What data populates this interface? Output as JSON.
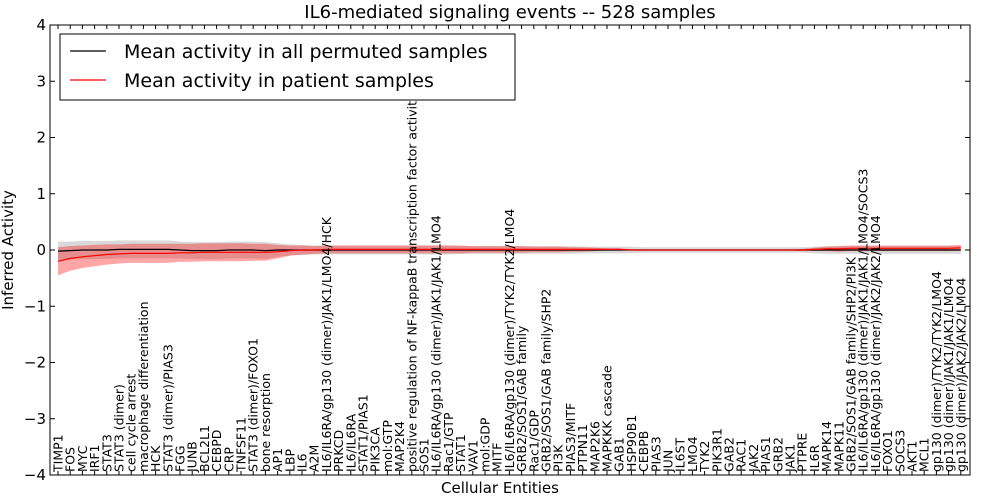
{
  "chart_data": {
    "type": "line",
    "title": "IL6-mediated signaling events -- 528 samples",
    "xlabel": "Cellular Entities",
    "ylabel": "Inferred Activity",
    "ylim": [
      -4,
      4
    ],
    "yticks": [
      "4",
      "3",
      "2",
      "1",
      "0",
      "−1",
      "−2",
      "−3",
      "−4"
    ],
    "grid": false,
    "legend": {
      "position": "top-left",
      "entries": [
        {
          "name": "Mean activity in all permuted samples",
          "color": "#000000"
        },
        {
          "name": "Mean activity in patient samples",
          "color": "#ff0000"
        }
      ]
    },
    "categories": [
      "TIMP1",
      "FOS",
      "MYC",
      "IRF1",
      "STAT3",
      "STAT3 (dimer)",
      "cell cycle arrest",
      "macrophage differentiation",
      "HCK",
      "STAT3 (dimer)/PIAS3",
      "FGG",
      "JUNB",
      "BCL2L1",
      "CEBPD",
      "CRP",
      "TNFSF11",
      "STAT3 (dimer)/FOXO1",
      "bone resorption",
      "AP1",
      "LBP",
      "IL6",
      "A2M",
      "IL6/IL6RA/gp130 (dimer)/JAK1/LMO4/HCK",
      "PRKCD",
      "IL6/IL6RA",
      "STAT1/PIAS1",
      "PIK3CA",
      "mol:GTP",
      "MAP2K4",
      "positive regulation of NF-kappaB transcription factor activity",
      "SOS1",
      "IL6/IL6RA/gp130 (dimer)/JAK1/JAK1/LMO4",
      "Rac1/GTP",
      "STAT1",
      "VAV1",
      "mol:GDP",
      "MITF",
      "IL6/IL6RA/gp130 (dimer)/TYK2/TYK2/LMO4",
      "GRB2/SOS1/GAB family",
      "Rac1/GDP",
      "GRB2/SOS1/GAB family/SHP2",
      "PI3K",
      "PIAS3/MITF",
      "PTPN11",
      "MAP2K6",
      "MAPKKK cascade",
      "GAB1",
      "HSP90B1",
      "CEBPB",
      "PIAS3",
      "JUN",
      "IL6ST",
      "LMO4",
      "TYK2",
      "PIK3R1",
      "GAB2",
      "RAC1",
      "JAK2",
      "PIAS1",
      "GRB2",
      "JAK1",
      "PTPRE",
      "IL6R",
      "MAPK14",
      "MAPK11",
      "GRB2/SOS1/GAB family/SHP2/PI3K",
      "IL6/IL6RA/gp130 (dimer)/JAK1/JAK1/LMO4/SOCS3",
      "IL6/IL6RA/gp130 (dimer)/JAK2/JAK2/LMO4",
      "FOXO1",
      "SOCS3",
      "AKT1",
      "MCL1",
      "gp130 (dimer)/TYK2/TYK2/LMO4",
      "gp130 (dimer)/JAK1/JAK1/LMO4",
      "gp130 (dimer)/JAK2/JAK2/LMO4"
    ],
    "series": [
      {
        "name": "Mean activity in all permuted samples",
        "color": "#000000",
        "values": [
          -0.02,
          -0.01,
          0,
          0,
          0,
          0.01,
          0.01,
          0.01,
          0.01,
          0.01,
          0,
          -0.01,
          -0.01,
          -0.01,
          0,
          0,
          0,
          -0.01,
          0,
          0,
          0,
          0,
          0,
          0,
          0,
          0,
          0,
          0,
          0,
          0,
          0,
          0,
          0,
          0,
          0,
          0,
          0,
          0,
          0,
          0,
          0,
          0,
          0,
          0,
          0,
          0,
          0,
          0,
          0,
          0,
          0,
          0,
          0,
          0,
          0,
          0,
          0,
          0,
          0,
          0,
          0,
          0,
          0,
          0,
          0,
          0,
          0,
          0,
          0,
          0,
          0,
          0,
          0,
          0,
          0
        ],
        "band": [
          0.17,
          0.16,
          0.16,
          0.16,
          0.16,
          0.16,
          0.16,
          0.16,
          0.16,
          0.16,
          0.15,
          0.15,
          0.15,
          0.15,
          0.15,
          0.15,
          0.15,
          0.15,
          0.12,
          0.1,
          0.09,
          0.08,
          0.08,
          0.08,
          0.08,
          0.08,
          0.08,
          0.08,
          0.08,
          0.08,
          0.08,
          0.08,
          0.08,
          0.07,
          0.07,
          0.07,
          0.07,
          0.07,
          0.07,
          0.07,
          0.07,
          0.07,
          0.07,
          0.06,
          0.06,
          0.06,
          0.06,
          0.06,
          0.05,
          0.05,
          0.05,
          0.05,
          0.05,
          0.05,
          0.05,
          0.05,
          0.05,
          0.05,
          0.05,
          0.05,
          0.05,
          0.05,
          0.06,
          0.07,
          0.07,
          0.07,
          0.07,
          0.07,
          0.07,
          0.07,
          0.07,
          0.07,
          0.07,
          0.07,
          0.07
        ]
      },
      {
        "name": "Mean activity in patient samples",
        "color": "#ff0000",
        "values": [
          -0.2,
          -0.15,
          -0.12,
          -0.1,
          -0.08,
          -0.07,
          -0.06,
          -0.06,
          -0.06,
          -0.06,
          -0.05,
          -0.05,
          -0.04,
          -0.04,
          -0.04,
          -0.04,
          -0.04,
          -0.04,
          -0.03,
          -0.01,
          0,
          0,
          0.01,
          0.01,
          0.01,
          0.01,
          0.01,
          0.01,
          0.01,
          0.01,
          0.01,
          0.01,
          0.01,
          0.01,
          0.01,
          0.01,
          0.01,
          0.01,
          0.01,
          0.01,
          0.01,
          0.01,
          0.01,
          0.01,
          0.01,
          0.01,
          0.01,
          0,
          0,
          0,
          0,
          0,
          0,
          0,
          0,
          0,
          0,
          0,
          0,
          0,
          0,
          0,
          0.01,
          0.02,
          0.02,
          0.03,
          0.03,
          0.03,
          0.03,
          0.03,
          0.03,
          0.03,
          0.03,
          0.03,
          0.04
        ],
        "band": [
          0.25,
          0.22,
          0.2,
          0.19,
          0.18,
          0.17,
          0.17,
          0.17,
          0.17,
          0.17,
          0.16,
          0.16,
          0.16,
          0.16,
          0.16,
          0.16,
          0.15,
          0.15,
          0.12,
          0.09,
          0.08,
          0.07,
          0.07,
          0.07,
          0.07,
          0.07,
          0.07,
          0.07,
          0.07,
          0.07,
          0.07,
          0.07,
          0.07,
          0.07,
          0.06,
          0.06,
          0.06,
          0.06,
          0.06,
          0.05,
          0.05,
          0.05,
          0.04,
          0.04,
          0.03,
          0.02,
          0.02,
          0.01,
          0.01,
          0.01,
          0.01,
          0.01,
          0.01,
          0.01,
          0.01,
          0.01,
          0.01,
          0.01,
          0.01,
          0.01,
          0.01,
          0.02,
          0.03,
          0.04,
          0.05,
          0.05,
          0.05,
          0.05,
          0.05,
          0.05,
          0.05,
          0.05,
          0.05,
          0.05,
          0.05
        ]
      }
    ]
  }
}
